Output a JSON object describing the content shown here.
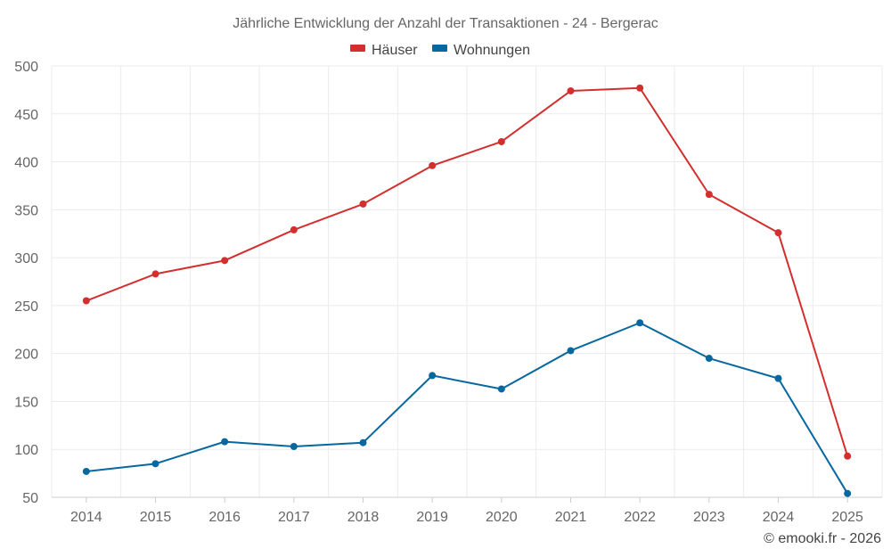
{
  "chart_data": {
    "type": "line",
    "title": "Jährliche Entwicklung der Anzahl der Transaktionen - 24 - Bergerac",
    "xlabel": "",
    "ylabel": "",
    "categories": [
      "2014",
      "2015",
      "2016",
      "2017",
      "2018",
      "2019",
      "2020",
      "2021",
      "2022",
      "2023",
      "2024",
      "2025"
    ],
    "ylim": [
      50,
      500
    ],
    "yticks": [
      50,
      100,
      150,
      200,
      250,
      300,
      350,
      400,
      450,
      500
    ],
    "grid": true,
    "legend_position": "top-center",
    "series": [
      {
        "name": "Häuser",
        "color": "#d32f2f",
        "values": [
          255,
          283,
          297,
          329,
          356,
          396,
          421,
          474,
          477,
          366,
          326,
          93
        ]
      },
      {
        "name": "Wohnungen",
        "color": "#07689f",
        "values": [
          77,
          85,
          108,
          103,
          107,
          177,
          163,
          203,
          232,
          195,
          174,
          54
        ]
      }
    ],
    "credit": "© emooki.fr - 2026"
  }
}
